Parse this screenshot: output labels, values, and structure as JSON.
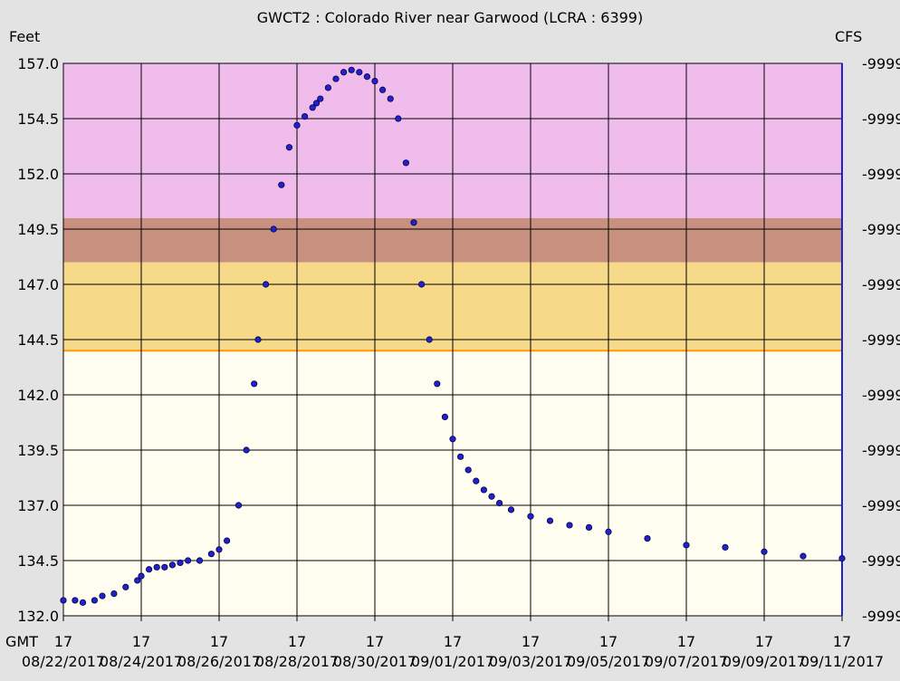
{
  "chart_data": {
    "type": "scatter",
    "title": "GWCT2  :  Colorado River near Garwood (LCRA : 6399)",
    "ylabel_left": "Feet",
    "ylabel_right": "CFS",
    "xlabel": "GMT",
    "ylim": [
      132.0,
      157.0
    ],
    "xlim_days": [
      0,
      20
    ],
    "yticks": [
      "132.0",
      "134.5",
      "137.0",
      "139.5",
      "142.0",
      "144.5",
      "147.0",
      "149.5",
      "152.0",
      "154.5",
      "157.0"
    ],
    "right_tick_label": "-9999",
    "xtick_hour_label": "17",
    "xtick_dates": [
      "08/22/2017",
      "08/24/2017",
      "08/26/2017",
      "08/28/2017",
      "08/30/2017",
      "09/01/2017",
      "09/03/2017",
      "09/05/2017",
      "09/07/2017",
      "09/09/2017",
      "09/11/2017"
    ],
    "bands": [
      {
        "from": 132.0,
        "to": 144.0,
        "color": "#fffdf0"
      },
      {
        "from": 144.0,
        "to": 148.0,
        "color": "#f7d98a"
      },
      {
        "from": 148.0,
        "to": 150.0,
        "color": "#c8917f"
      },
      {
        "from": 150.0,
        "to": 157.0,
        "color": "#efbcec"
      }
    ],
    "band_edge_color": "#ff9900",
    "marker_color": "#2222cc",
    "series": [
      {
        "x": [
          0.0,
          0.3,
          0.5,
          0.8,
          1.0,
          1.3,
          1.6,
          1.9,
          2.0,
          2.2,
          2.4,
          2.6,
          2.8,
          3.0,
          3.2,
          3.5,
          3.8,
          4.0,
          4.2,
          4.5,
          4.7,
          4.9,
          5.0,
          5.2,
          5.4,
          5.6,
          5.8,
          6.0,
          6.2,
          6.4,
          6.5,
          6.6,
          6.8,
          7.0,
          7.2,
          7.4,
          7.6,
          7.8,
          8.0,
          8.2,
          8.4,
          8.6,
          8.8,
          9.0,
          9.2,
          9.4,
          9.6,
          9.8,
          10.0,
          10.2,
          10.4,
          10.6,
          10.8,
          11.0,
          11.2,
          11.5,
          12.0,
          12.5,
          13.0,
          13.5,
          14.0,
          15.0,
          16.0,
          17.0,
          18.0,
          19.0,
          20.0
        ],
        "y": [
          132.7,
          132.7,
          132.6,
          132.7,
          132.9,
          133.0,
          133.3,
          133.6,
          133.8,
          134.1,
          134.2,
          134.2,
          134.3,
          134.4,
          134.5,
          134.5,
          134.8,
          135.0,
          135.4,
          137.0,
          139.5,
          142.5,
          144.5,
          147.0,
          149.5,
          151.5,
          153.2,
          154.2,
          154.6,
          155.0,
          155.2,
          155.4,
          155.9,
          156.3,
          156.6,
          156.7,
          156.6,
          156.4,
          156.2,
          155.8,
          155.4,
          154.5,
          152.5,
          149.8,
          147.0,
          144.5,
          142.5,
          141.0,
          140.0,
          139.2,
          138.6,
          138.1,
          137.7,
          137.4,
          137.1,
          136.8,
          136.5,
          136.3,
          136.1,
          136.0,
          135.8,
          135.5,
          135.2,
          135.1,
          134.9,
          134.7,
          134.6
        ]
      }
    ]
  }
}
